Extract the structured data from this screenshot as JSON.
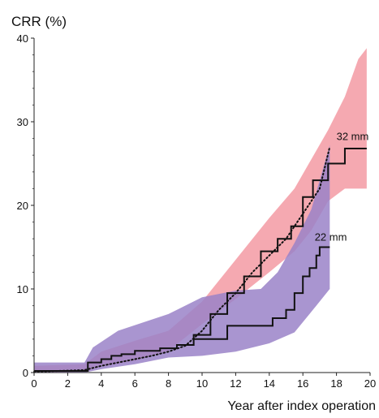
{
  "chart_data": {
    "type": "line",
    "title": "CRR (%)",
    "xlabel": "Year after index operation",
    "ylabel": "",
    "xlim": [
      0,
      20
    ],
    "ylim": [
      0,
      40
    ],
    "xticks": [
      0,
      2,
      4,
      6,
      8,
      10,
      12,
      14,
      16,
      18,
      20
    ],
    "yticks": [
      0,
      10,
      20,
      30,
      40
    ],
    "grid": false,
    "legend": "none",
    "colors": {
      "band_32": "#f4a0a8",
      "band_22": "#9a82c8",
      "band_overlap": "#b59cd6",
      "line": "#111111"
    },
    "series": [
      {
        "label": "32 mm",
        "style": "solid",
        "points": [
          [
            0,
            0.2
          ],
          [
            2.8,
            0.2
          ],
          [
            3.2,
            1.2
          ],
          [
            4.0,
            1.6
          ],
          [
            4.6,
            2.0
          ],
          [
            5.2,
            2.2
          ],
          [
            6.0,
            2.6
          ],
          [
            7.5,
            2.9
          ],
          [
            8.5,
            3.3
          ],
          [
            9.5,
            4.5
          ],
          [
            10.5,
            7.0
          ],
          [
            11.5,
            9.5
          ],
          [
            12.5,
            11.5
          ],
          [
            13.5,
            14.5
          ],
          [
            14.5,
            16.0
          ],
          [
            15.3,
            17.5
          ],
          [
            16.0,
            21.0
          ],
          [
            16.6,
            23.0
          ],
          [
            17.5,
            25.0
          ],
          [
            18.5,
            26.8
          ],
          [
            19.8,
            26.8
          ]
        ],
        "band_upper": [
          [
            0,
            0.8
          ],
          [
            3.0,
            1.0
          ],
          [
            4.0,
            2.5
          ],
          [
            6.0,
            3.8
          ],
          [
            8.0,
            5.0
          ],
          [
            10.0,
            8.5
          ],
          [
            12.0,
            13.5
          ],
          [
            14.0,
            18.5
          ],
          [
            15.5,
            22.0
          ],
          [
            16.5,
            25.5
          ],
          [
            17.5,
            29.0
          ],
          [
            18.5,
            33.0
          ],
          [
            19.3,
            37.5
          ],
          [
            19.8,
            38.8
          ]
        ],
        "band_lower": [
          [
            19.8,
            22.0
          ],
          [
            18.5,
            22.0
          ],
          [
            17.5,
            20.5
          ],
          [
            16.5,
            17.0
          ],
          [
            15.5,
            14.5
          ],
          [
            14.0,
            12.0
          ],
          [
            12.0,
            8.8
          ],
          [
            10.0,
            5.8
          ],
          [
            8.0,
            2.6
          ],
          [
            6.0,
            1.4
          ],
          [
            4.0,
            0.7
          ],
          [
            3.0,
            0.1
          ],
          [
            0,
            0.0
          ]
        ]
      },
      {
        "label": "22 mm",
        "style": "dotted_and_solid",
        "dotted": [
          [
            0,
            0.1
          ],
          [
            3.0,
            0.3
          ],
          [
            4.0,
            0.8
          ],
          [
            5.0,
            1.2
          ],
          [
            6.0,
            1.6
          ],
          [
            7.0,
            2.0
          ],
          [
            8.0,
            2.5
          ],
          [
            9.0,
            3.2
          ],
          [
            10.0,
            5.0
          ],
          [
            11.0,
            7.5
          ],
          [
            12.0,
            9.5
          ],
          [
            13.0,
            12.0
          ],
          [
            14.0,
            14.0
          ],
          [
            15.0,
            16.0
          ],
          [
            16.0,
            19.0
          ],
          [
            17.0,
            22.0
          ],
          [
            17.6,
            27.0
          ]
        ],
        "solid": [
          [
            9.5,
            4.0
          ],
          [
            10.8,
            4.0
          ],
          [
            11.5,
            5.6
          ],
          [
            13.8,
            5.6
          ],
          [
            14.2,
            6.5
          ],
          [
            15.0,
            7.5
          ],
          [
            15.5,
            9.5
          ],
          [
            16.0,
            11.5
          ],
          [
            16.4,
            12.5
          ],
          [
            16.8,
            14.0
          ],
          [
            17.0,
            15.0
          ],
          [
            17.6,
            15.0
          ]
        ],
        "band_upper": [
          [
            0,
            1.2
          ],
          [
            3.0,
            1.2
          ],
          [
            3.5,
            3.0
          ],
          [
            5.0,
            5.0
          ],
          [
            8.0,
            7.0
          ],
          [
            10.0,
            9.0
          ],
          [
            12.0,
            9.8
          ],
          [
            13.5,
            10.0
          ],
          [
            14.5,
            12.0
          ],
          [
            15.5,
            15.5
          ],
          [
            16.5,
            19.5
          ],
          [
            17.0,
            23.0
          ],
          [
            17.6,
            27.2
          ]
        ],
        "band_lower": [
          [
            17.6,
            10.0
          ],
          [
            16.8,
            8.0
          ],
          [
            15.5,
            4.8
          ],
          [
            14.0,
            3.5
          ],
          [
            12.0,
            2.5
          ],
          [
            10.0,
            2.0
          ],
          [
            8.0,
            1.8
          ],
          [
            6.0,
            1.0
          ],
          [
            4.0,
            0.4
          ],
          [
            3.0,
            0.0
          ],
          [
            0,
            0.0
          ]
        ]
      }
    ],
    "annotations": [
      {
        "text": "32 mm",
        "x": 18.0,
        "y": 27.8
      },
      {
        "text": "22 mm",
        "x": 16.7,
        "y": 15.8
      }
    ]
  }
}
